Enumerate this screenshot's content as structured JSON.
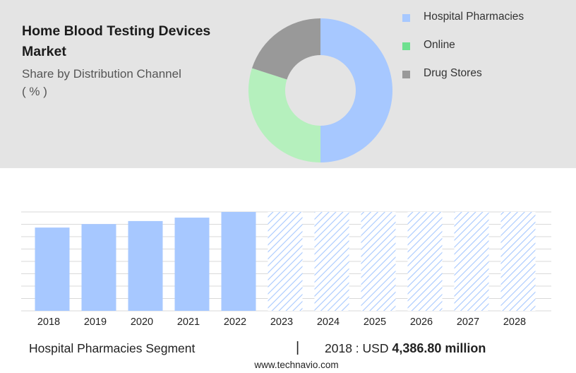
{
  "header": {
    "title": "Home Blood Testing Devices Market",
    "subtitle": "Share by Distribution Channel",
    "unit": "( % )"
  },
  "legend": {
    "items": [
      {
        "label": "Hospital Pharmacies",
        "color": "#a7c8ff"
      },
      {
        "label": "Online",
        "color": "#6ee08f"
      },
      {
        "label": "Drug Stores",
        "color": "#999999"
      }
    ]
  },
  "footer": {
    "segment": "Hospital Pharmacies Segment",
    "divider": "|",
    "year_label": "2018 : USD",
    "value": "4,386.80 million",
    "site": "www.technavio.com"
  },
  "chart_data": [
    {
      "type": "pie",
      "style": "donut",
      "categories": [
        "Hospital Pharmacies",
        "Online",
        "Drug Stores"
      ],
      "values": [
        50,
        30,
        20
      ],
      "colors": [
        "#a7c8ff",
        "#b5f0bd",
        "#999999"
      ],
      "legend": "right"
    },
    {
      "type": "bar",
      "categories": [
        "2018",
        "2019",
        "2020",
        "2021",
        "2022",
        "2023",
        "2024",
        "2025",
        "2026",
        "2027",
        "2028"
      ],
      "values": [
        4386.8,
        4570,
        4730,
        4910,
        5210,
        5210,
        5210,
        5210,
        5210,
        5210,
        5210
      ],
      "forecast_from": "2023",
      "ylim": [
        0,
        5210
      ],
      "grid": true,
      "bar_color": "#a7c8ff",
      "forecast_style": "hatched",
      "yaxis_labels": false
    }
  ]
}
